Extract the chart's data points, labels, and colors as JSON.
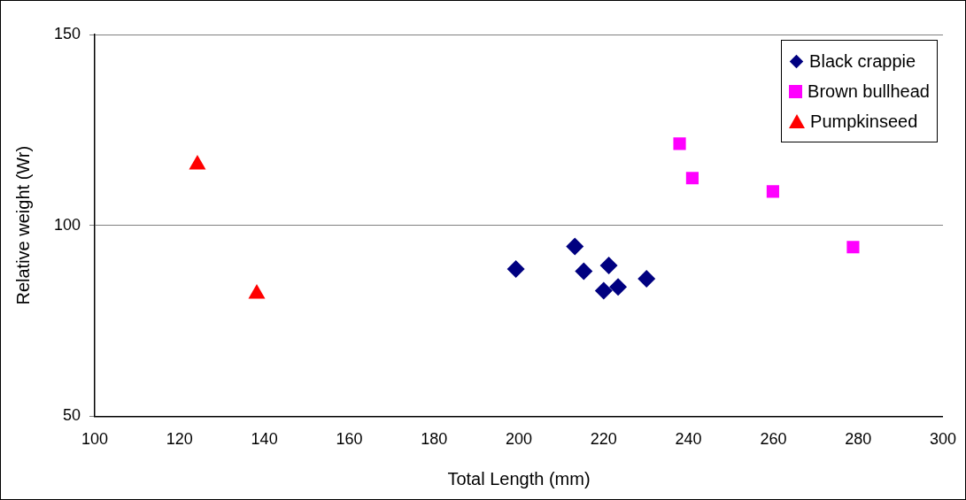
{
  "chart_data": {
    "type": "scatter",
    "xlabel": "Total Length (mm)",
    "ylabel": "Relative weight (Wr)",
    "xlim": [
      100,
      300
    ],
    "xticks": [
      100,
      120,
      140,
      160,
      180,
      200,
      220,
      240,
      260,
      280,
      300
    ],
    "ylim": [
      50,
      150
    ],
    "yticks": [
      50,
      100,
      150
    ],
    "grid": "y",
    "legend": "top right",
    "series": [
      {
        "name": "Black crappie",
        "color": "#000080",
        "marker": "diamond",
        "x": [
          199.3,
          213.2,
          215.3,
          221.2,
          220.0,
          223.4,
          230.1
        ],
        "values": [
          88.6,
          94.5,
          88.0,
          89.5,
          82.9,
          83.9,
          86.0
        ]
      },
      {
        "name": "Brown bullhead",
        "color": "#ff00ff",
        "marker": "square",
        "x": [
          237.9,
          240.9,
          259.9,
          278.8
        ],
        "values": [
          121.4,
          112.4,
          108.9,
          94.3
        ]
      },
      {
        "name": "Pumpkinseed",
        "color": "#ff0000",
        "marker": "triangle",
        "x": [
          124.2,
          138.2
        ],
        "values": [
          115.9,
          82.1
        ]
      }
    ]
  }
}
